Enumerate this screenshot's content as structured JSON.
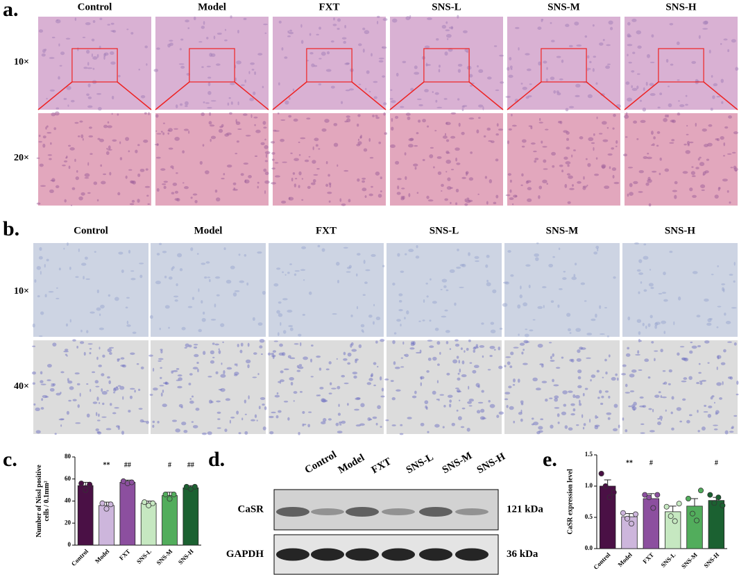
{
  "panel_a": {
    "label": "a.",
    "columns": [
      "Control",
      "Model",
      "FXT",
      "SNS-L",
      "SNS-M",
      "SNS-H"
    ],
    "rows": [
      "10×",
      "20×"
    ]
  },
  "panel_b": {
    "label": "b.",
    "columns": [
      "Control",
      "Model",
      "FXT",
      "SNS-L",
      "SNS-M",
      "SNS-H"
    ],
    "rows": [
      "10×",
      "40×"
    ]
  },
  "panel_d": {
    "label": "d.",
    "lanes": [
      "Control",
      "Model",
      "FXT",
      "SNS-L",
      "SNS-M",
      "SNS-H"
    ],
    "rows": [
      {
        "name": "CaSR",
        "size": "121 kDa"
      },
      {
        "name": "GAPDH",
        "size": "36 kDa"
      }
    ]
  },
  "chart_data": [
    {
      "type": "bar",
      "panel_label": "c.",
      "ylabel": [
        "Number of Nissl positive",
        "cells / 0.1mm²"
      ],
      "categories": [
        "Control",
        "Model",
        "FXT",
        "SNS-L",
        "SNS-M",
        "SNS-H"
      ],
      "values": [
        54,
        36,
        57,
        38,
        45,
        52
      ],
      "errors": [
        3,
        3,
        2,
        2,
        3,
        2
      ],
      "points": [
        [
          56,
          50,
          55
        ],
        [
          38,
          33,
          37
        ],
        [
          58,
          56,
          57
        ],
        [
          39,
          36,
          38
        ],
        [
          46,
          42,
          46
        ],
        [
          53,
          51,
          53
        ]
      ],
      "annotations": [
        null,
        "**",
        "##",
        null,
        "#",
        "##"
      ],
      "colors": [
        "#4a1045",
        "#cdb6dc",
        "#8c4f9f",
        "#c6e8c1",
        "#52ad5c",
        "#1b6131"
      ],
      "ylim": [
        0,
        80
      ],
      "yticks": [
        0,
        20,
        40,
        60,
        80
      ]
    },
    {
      "type": "bar",
      "panel_label": "e.",
      "ylabel": [
        "CaSR expression level"
      ],
      "categories": [
        "Control",
        "Model",
        "FXT",
        "SNS-L",
        "SNS-M",
        "SNS-H"
      ],
      "values": [
        1.0,
        0.51,
        0.8,
        0.59,
        0.68,
        0.77
      ],
      "errors": [
        0.1,
        0.05,
        0.08,
        0.09,
        0.12,
        0.05
      ],
      "points": [
        [
          1.2,
          1.0,
          0.82,
          0.9
        ],
        [
          0.57,
          0.48,
          0.4,
          0.55
        ],
        [
          0.86,
          0.82,
          0.65,
          0.86
        ],
        [
          0.67,
          0.52,
          0.44,
          0.72
        ],
        [
          0.8,
          0.56,
          0.45,
          0.93
        ],
        [
          0.86,
          0.73,
          0.82,
          0.69
        ]
      ],
      "annotations": [
        null,
        "**",
        "#",
        null,
        null,
        "#"
      ],
      "colors": [
        "#4a1045",
        "#cdb6dc",
        "#8c4f9f",
        "#c6e8c1",
        "#52ad5c",
        "#1b6131"
      ],
      "ylim": [
        0,
        1.5
      ],
      "yticks": [
        {
          "value": 0,
          "label": "0.0"
        },
        {
          "value": 0.5,
          "label": "0.5"
        },
        {
          "value": 1,
          "label": "1.0"
        },
        {
          "value": 1.5,
          "label": "1.5"
        }
      ]
    }
  ]
}
